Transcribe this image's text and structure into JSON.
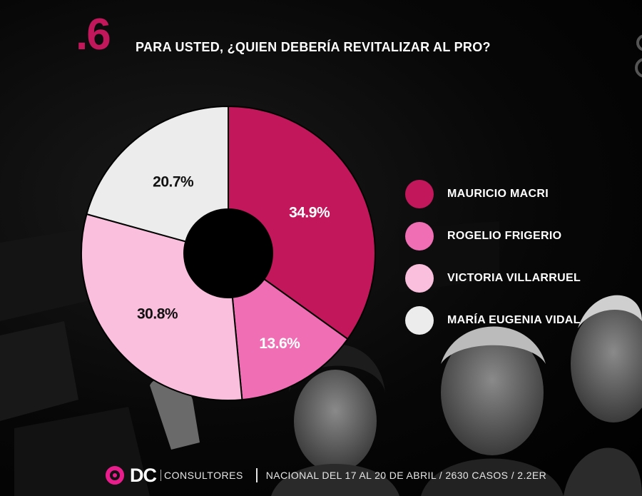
{
  "header": {
    "number": ".6",
    "question": "PARA USTED, ¿QUIEN DEBERÍA REVITALIZAR AL PRO?"
  },
  "chart_data": {
    "type": "pie",
    "variant": "donut",
    "title": "PARA USTED, ¿QUIEN DEBERÍA REVITALIZAR AL PRO?",
    "categories": [
      "MAURICIO MACRI",
      "ROGELIO FRIGERIO",
      "VICTORIA VILLARRUEL",
      "MARÍA EUGENIA VIDAL"
    ],
    "values": [
      34.9,
      13.6,
      30.8,
      20.7
    ],
    "labels": [
      "34.9%",
      "13.6%",
      "30.8%",
      "20.7%"
    ],
    "colors": [
      "#c2185b",
      "#f06eb4",
      "#f9bfdc",
      "#ececec"
    ],
    "label_colors": [
      "#ffffff",
      "#ffffff",
      "#111111",
      "#111111"
    ],
    "legend_position": "right",
    "start": "top",
    "direction": "clockwise"
  },
  "legend": {
    "items": [
      {
        "label": "MAURICIO MACRI",
        "color": "#c2185b"
      },
      {
        "label": "ROGELIO FRIGERIO",
        "color": "#f06eb4"
      },
      {
        "label": "VICTORIA VILLARRUEL",
        "color": "#f9bfdc"
      },
      {
        "label": "MARÍA EUGENIA VIDAL",
        "color": "#ececec"
      }
    ]
  },
  "footer": {
    "logo": "DC",
    "logo_sub": "CONSULTORES",
    "info": "NACIONAL  DEL 17 AL 20 DE ABRIL / 2630 CASOS / 2.2ER"
  },
  "theme": {
    "accent": "#c2185b",
    "logo_accent": "#e91e8c",
    "background": "#000000"
  }
}
